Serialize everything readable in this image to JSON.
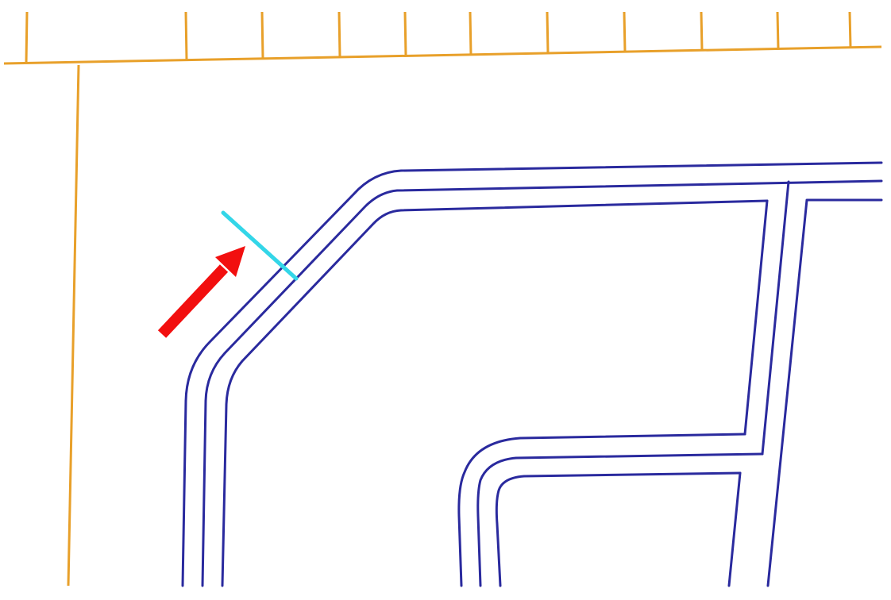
{
  "diagram": {
    "colors": {
      "background": "#ffffff",
      "frame": "#e8a02a",
      "wall_outline": "#2a2a9e",
      "cut_marker": "#33d6e8",
      "arrow": "#f20f0f"
    },
    "elements": [
      "top-frame-line",
      "top-frame-ticks",
      "left-frame-line",
      "outer-wall-band",
      "inner-partition-band",
      "lower-room-band",
      "cut-marker-line",
      "direction-arrow"
    ],
    "tick_count": 11
  }
}
